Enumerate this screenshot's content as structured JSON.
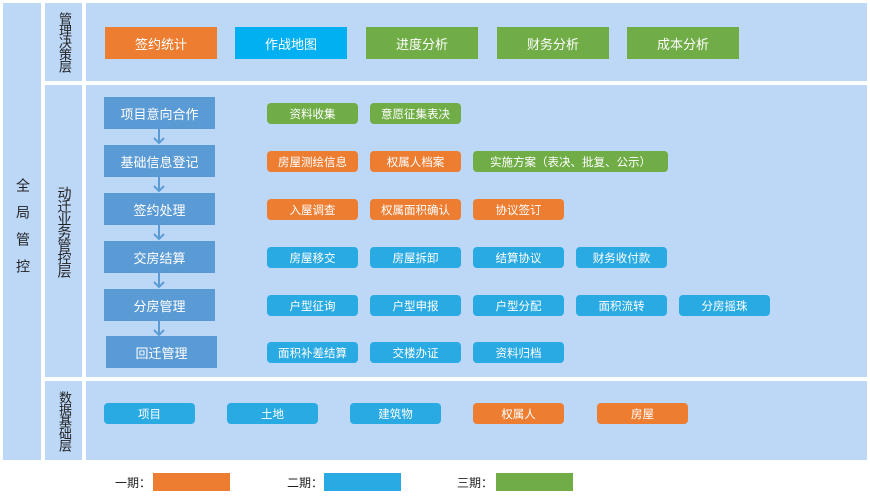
{
  "global_label": "全局管控",
  "layers": {
    "decision": {
      "label": "管理决策层",
      "buttons": [
        {
          "label": "签约统计",
          "color": "orange"
        },
        {
          "label": "作战地图",
          "color": "cyan"
        },
        {
          "label": "进度分析",
          "color": "green"
        },
        {
          "label": "财务分析",
          "color": "green"
        },
        {
          "label": "成本分析",
          "color": "green"
        }
      ]
    },
    "business": {
      "label": "动迁业务管控层",
      "steps": [
        {
          "label": "项目意向合作",
          "tags": [
            {
              "label": "资料收集",
              "color": "green"
            },
            {
              "label": "意愿征集表决",
              "color": "green"
            }
          ]
        },
        {
          "label": "基础信息登记",
          "tags": [
            {
              "label": "房屋测绘信息",
              "color": "orange"
            },
            {
              "label": "权属人档案",
              "color": "orange"
            },
            {
              "label": "实施方案（表决、批复、公示）",
              "color": "green",
              "wide": true
            }
          ]
        },
        {
          "label": "签约处理",
          "tags": [
            {
              "label": "入屋调查",
              "color": "orange"
            },
            {
              "label": "权属面积确认",
              "color": "orange"
            },
            {
              "label": "协议签订",
              "color": "orange"
            }
          ]
        },
        {
          "label": "交房结算",
          "tags": [
            {
              "label": "房屋移交",
              "color": "blue"
            },
            {
              "label": "房屋拆卸",
              "color": "blue"
            },
            {
              "label": "结算协议",
              "color": "blue"
            },
            {
              "label": "财务收付款",
              "color": "blue"
            }
          ]
        },
        {
          "label": "分房管理",
          "tags": [
            {
              "label": "户型征询",
              "color": "blue"
            },
            {
              "label": "户型申报",
              "color": "blue"
            },
            {
              "label": "户型分配",
              "color": "blue"
            },
            {
              "label": "面积流转",
              "color": "blue"
            },
            {
              "label": "分房摇珠",
              "color": "blue"
            }
          ]
        },
        {
          "label": "回迁管理",
          "tags": [
            {
              "label": "面积补差结算",
              "color": "blue"
            },
            {
              "label": "交楼办证",
              "color": "blue"
            },
            {
              "label": "资料归档",
              "color": "blue"
            }
          ]
        }
      ]
    },
    "data": {
      "label": "数据基础层",
      "items": [
        {
          "label": "项目",
          "color": "blue"
        },
        {
          "label": "土地",
          "color": "blue"
        },
        {
          "label": "建筑物",
          "color": "blue"
        },
        {
          "label": "权属人",
          "color": "orange"
        },
        {
          "label": "房屋",
          "color": "orange"
        }
      ]
    }
  },
  "legend": [
    {
      "label": "一期：",
      "color": "#ed7d31"
    },
    {
      "label": "二期：",
      "color": "#29aae3"
    },
    {
      "label": "三期：",
      "color": "#70ad47"
    }
  ],
  "colors": {
    "orange": "#ed7d31",
    "blue": "#29aae3",
    "cyan": "#00b0f0",
    "green": "#70ad47",
    "process": "#5b9bd5",
    "panel": "#bdd7f7"
  }
}
